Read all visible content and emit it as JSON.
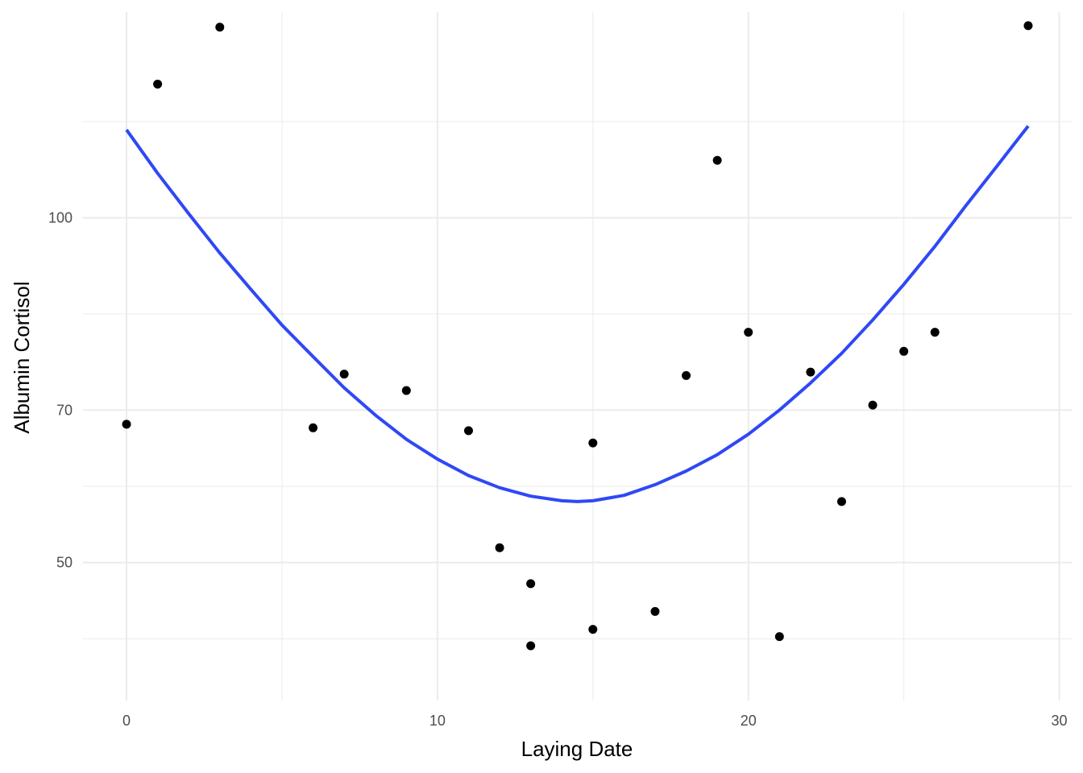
{
  "chart_data": {
    "type": "scatter",
    "title": "",
    "xlabel": "Laying Date",
    "ylabel": "Albumin Cortisol",
    "x_range": [
      -1.4,
      30.4
    ],
    "y_range": [
      34.8,
      138.0
    ],
    "x_ticks": [
      0,
      10,
      20,
      30
    ],
    "y_ticks": [
      50,
      70,
      100
    ],
    "y_scale": "sqrt",
    "grid": true,
    "legend": "none",
    "colors": {
      "points": "#000000",
      "fit_line": "#2f48f5",
      "grid": "#ebebeb"
    },
    "points": {
      "x": [
        0,
        1,
        3,
        6,
        7,
        9,
        11,
        12,
        13,
        13,
        15,
        15,
        17,
        18,
        19,
        20,
        21,
        22,
        23,
        24,
        25,
        26,
        29
      ],
      "y": [
        68.0,
        124.0,
        135.0,
        67.5,
        75.2,
        72.8,
        67.1,
        51.8,
        47.5,
        40.5,
        42.3,
        65.4,
        44.3,
        75.0,
        110.0,
        81.5,
        41.5,
        75.5,
        57.6,
        70.7,
        78.6,
        81.5,
        135.3
      ]
    },
    "fit_curve": {
      "x": [
        0,
        1,
        2,
        3,
        4,
        5,
        6,
        7,
        8,
        9,
        10,
        11,
        12,
        13,
        14,
        14.5,
        15,
        16,
        17,
        18,
        19,
        20,
        21,
        22,
        23,
        24,
        25,
        26,
        27,
        28,
        29
      ],
      "y": [
        115.5,
        107.7,
        100.7,
        94.1,
        88.2,
        82.6,
        77.8,
        73.2,
        69.3,
        65.9,
        63.2,
        61.0,
        59.4,
        58.3,
        57.7,
        57.6,
        57.7,
        58.4,
        59.8,
        61.6,
        63.8,
        66.6,
        70.0,
        73.9,
        78.3,
        83.4,
        89.0,
        95.2,
        102.1,
        109.0,
        116.2
      ]
    }
  }
}
